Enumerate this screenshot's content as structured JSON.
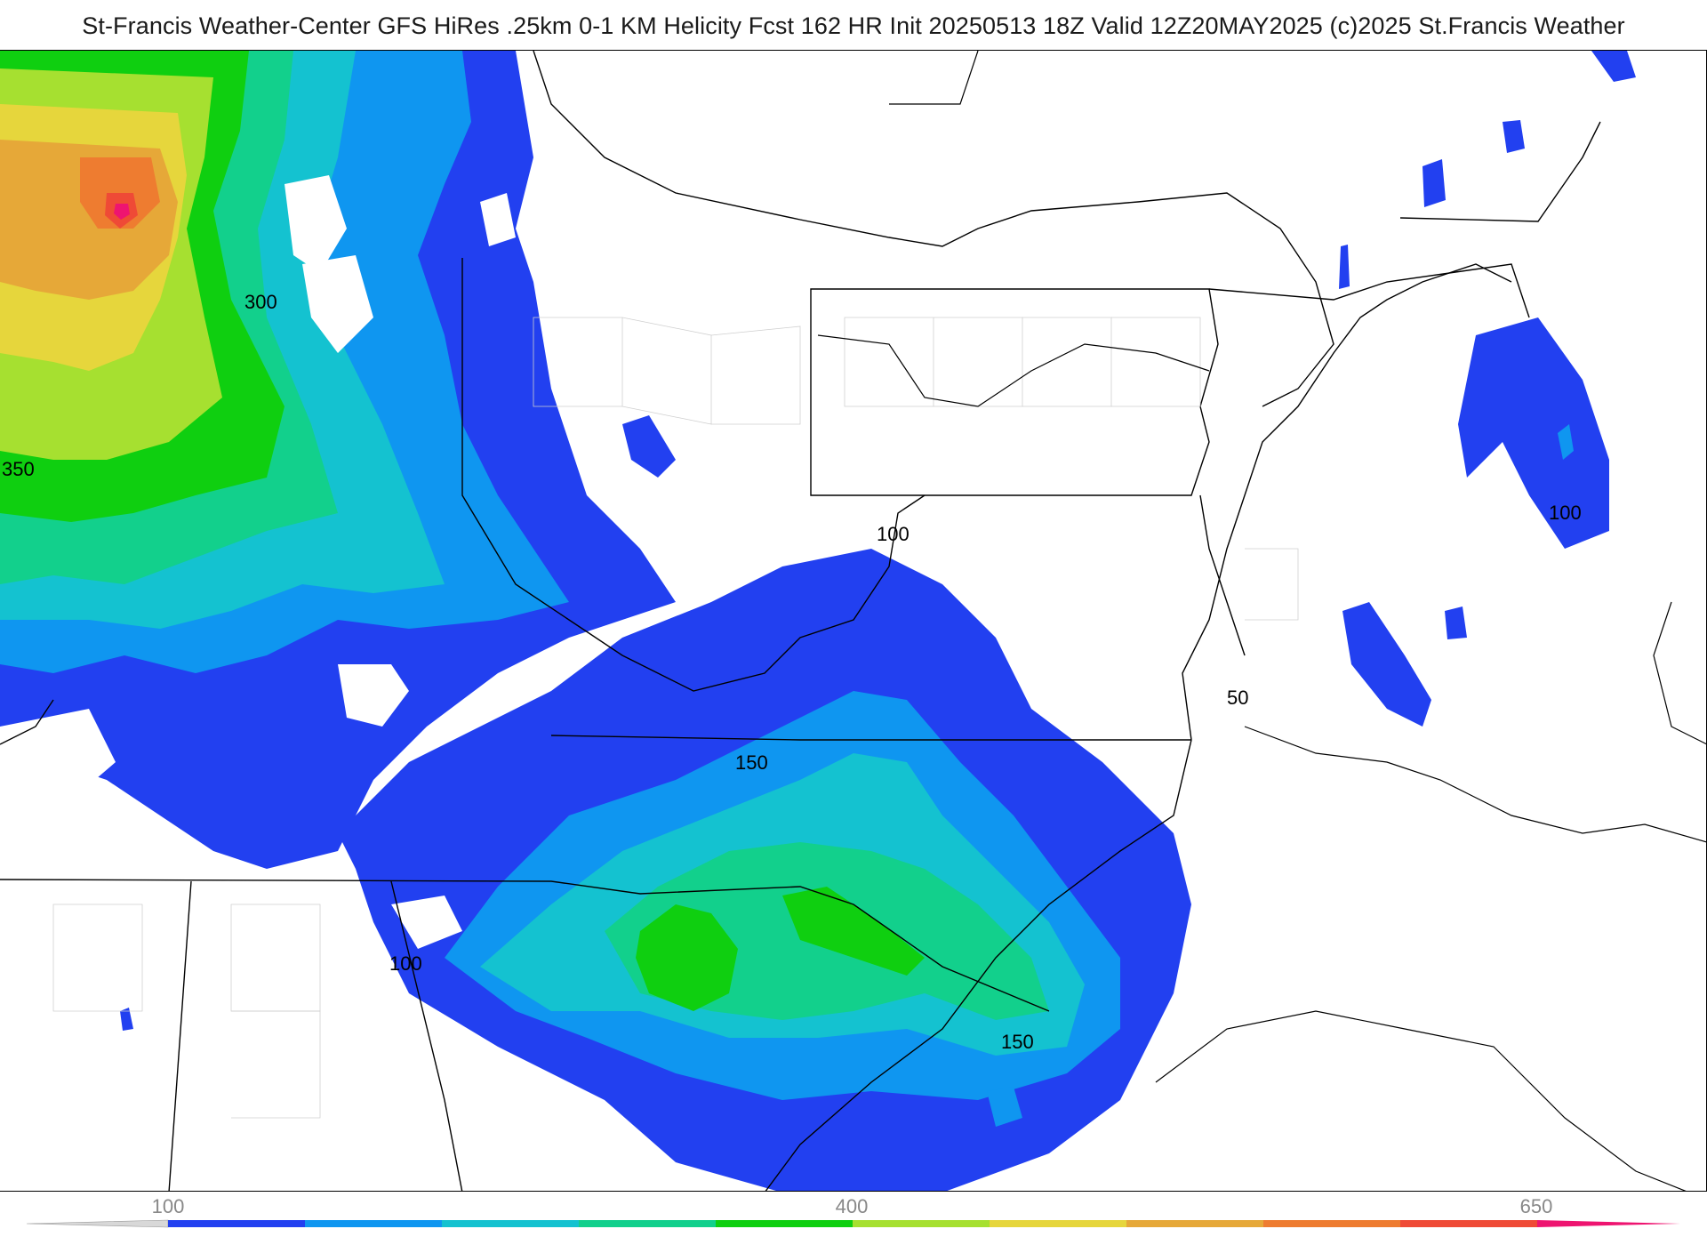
{
  "header": {
    "title": "St-Francis Weather-Center GFS HiRes .25km 0-1 KM Helicity Fcst 162 HR Init 20250513 18Z  Valid 12Z20MAY2025    (c)2025 St.Francis Weather"
  },
  "map": {
    "field": "0-1 KM Helicity",
    "region": "Eastern United States",
    "contour_labels": [
      "300",
      "350",
      "100",
      "150",
      "100",
      "150",
      "100",
      "50"
    ]
  },
  "colorbar": {
    "tick_labels": [
      "100",
      "400",
      "650"
    ],
    "levels": [
      100,
      150,
      200,
      250,
      300,
      350,
      400,
      450,
      500,
      550,
      600,
      650
    ],
    "colors": [
      "#2240f0",
      "#0f96f0",
      "#14c2d0",
      "#12d08c",
      "#0fcf10",
      "#a6e030",
      "#e6d63c",
      "#e6a838",
      "#ee7c30",
      "#ef4a36",
      "#ee1470",
      "#e8147a"
    ]
  },
  "legend_colors": {
    "blue": "#2240f0",
    "light_blue": "#0f96f0",
    "cyan": "#14c2d0",
    "teal_green": "#12d08c",
    "green": "#0fcf10",
    "yellow_green": "#a6e030",
    "yellow": "#e6d63c",
    "orange": "#e6a838",
    "dark_orange": "#ee7c30",
    "red": "#ef4a36",
    "magenta": "#ee1470"
  }
}
